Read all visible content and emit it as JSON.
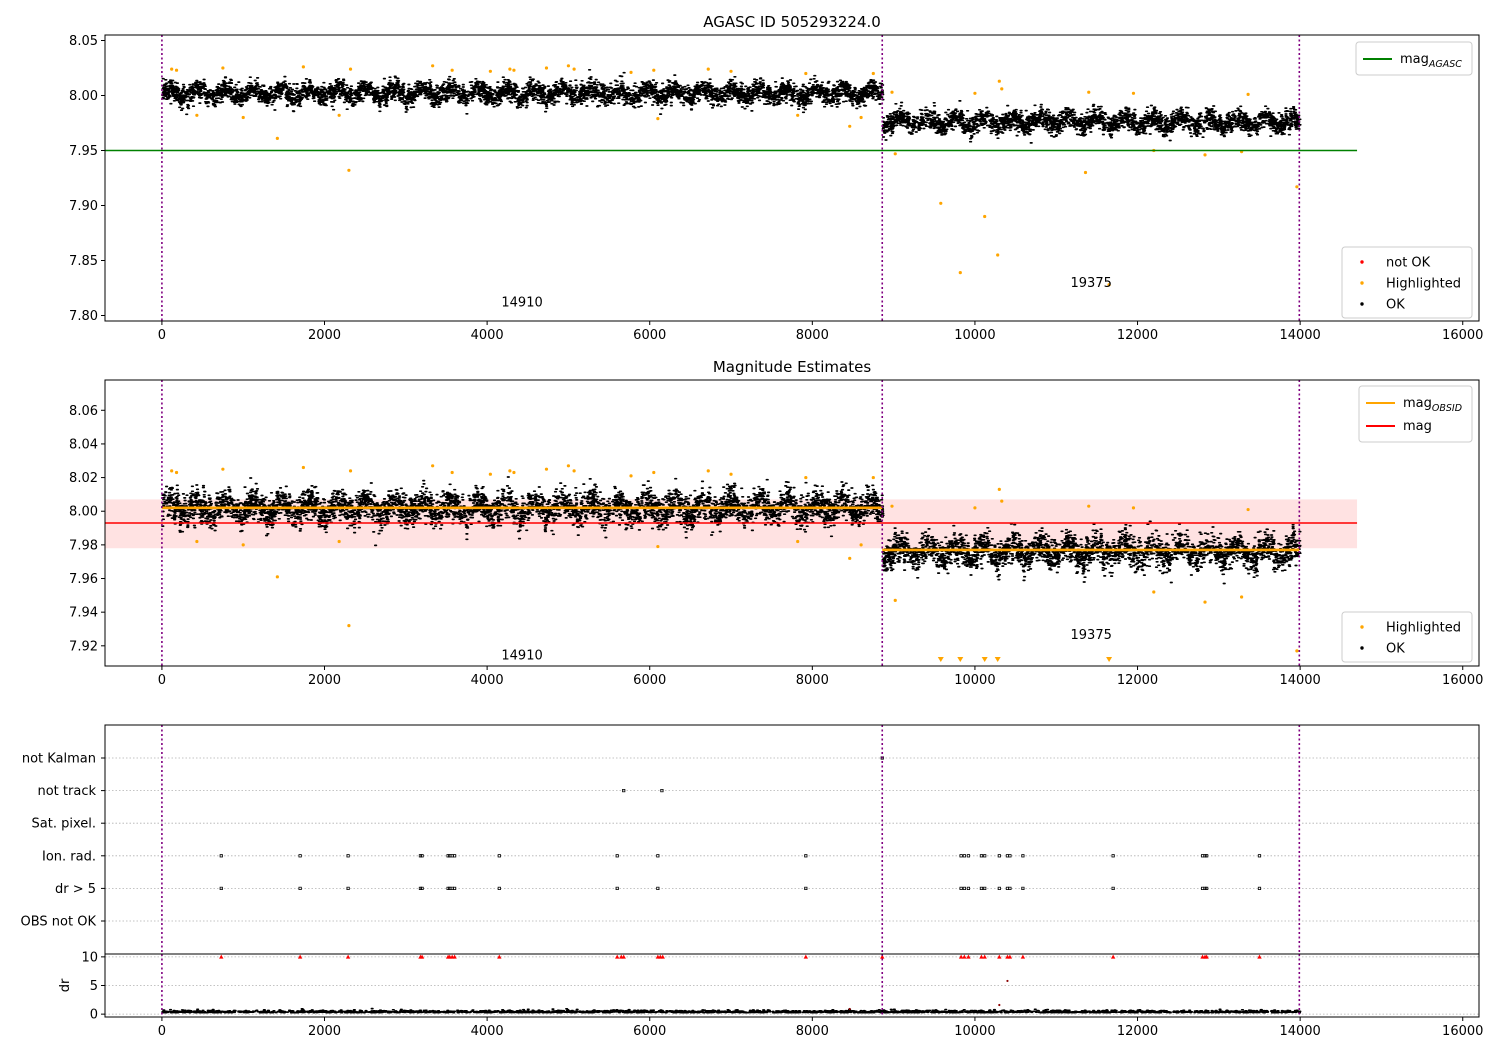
{
  "chart_data": [
    {
      "type": "scatter",
      "title": "AGASC ID 505293224.0",
      "xlim": [
        -700,
        16200
      ],
      "ylim": [
        7.795,
        8.055
      ],
      "xticks": [
        0,
        2000,
        4000,
        6000,
        8000,
        10000,
        12000,
        14000,
        16000
      ],
      "yticks": [
        7.8,
        7.85,
        7.9,
        7.95,
        8.0,
        8.05
      ],
      "ytick_labels": [
        "7.80",
        "7.85",
        "7.90",
        "7.95",
        "8.00",
        "8.05"
      ],
      "vlines": [
        0,
        8860,
        13990
      ],
      "hline": {
        "value": 7.95,
        "x": [
          -700,
          14700
        ],
        "color": "#008000"
      },
      "segments": [
        {
          "x": [
            0,
            8860
          ],
          "center": 8.002,
          "spread": 0.008
        },
        {
          "x": [
            8860,
            13990
          ],
          "center": 7.976,
          "spread": 0.008
        }
      ],
      "annotations": [
        {
          "text": "14910",
          "x": 4430,
          "y": 7.808
        },
        {
          "text": "19375",
          "x": 11430,
          "y": 7.826
        }
      ],
      "highlighted": [
        [
          120,
          8.024
        ],
        [
          180,
          8.023
        ],
        [
          430,
          7.982
        ],
        [
          750,
          8.025
        ],
        [
          1000,
          7.98
        ],
        [
          1420,
          7.961
        ],
        [
          1740,
          8.026
        ],
        [
          2180,
          7.982
        ],
        [
          2300,
          7.932
        ],
        [
          2320,
          8.024
        ],
        [
          3330,
          8.027
        ],
        [
          3570,
          8.023
        ],
        [
          4040,
          8.022
        ],
        [
          4280,
          8.024
        ],
        [
          4330,
          8.023
        ],
        [
          4730,
          8.025
        ],
        [
          5000,
          8.027
        ],
        [
          5070,
          8.024
        ],
        [
          5770,
          8.021
        ],
        [
          6050,
          8.023
        ],
        [
          6100,
          7.979
        ],
        [
          6720,
          8.024
        ],
        [
          7000,
          8.022
        ],
        [
          7820,
          7.982
        ],
        [
          7920,
          8.02
        ],
        [
          8460,
          7.972
        ],
        [
          8600,
          7.98
        ],
        [
          8750,
          8.02
        ],
        [
          8980,
          8.003
        ],
        [
          9020,
          7.947
        ],
        [
          9580,
          7.902
        ],
        [
          9820,
          7.839
        ],
        [
          10120,
          7.89
        ],
        [
          10280,
          7.855
        ],
        [
          10300,
          8.013
        ],
        [
          10330,
          8.006
        ],
        [
          11360,
          7.93
        ],
        [
          11400,
          8.003
        ],
        [
          11950,
          8.002
        ],
        [
          12200,
          7.95
        ],
        [
          12830,
          7.946
        ],
        [
          13280,
          7.949
        ],
        [
          13360,
          8.001
        ],
        [
          13960,
          7.917
        ],
        [
          11650,
          7.828
        ],
        [
          10000,
          8.002
        ]
      ],
      "legend_lines": [
        {
          "label": "mag",
          "sub": "AGASC",
          "color": "#008000"
        }
      ],
      "legend_markers": [
        {
          "label": "not OK",
          "color": "#ff0000"
        },
        {
          "label": "Highlighted",
          "color": "#ffa500"
        },
        {
          "label": "OK",
          "color": "#000000"
        }
      ]
    },
    {
      "type": "scatter",
      "title": "Magnitude Estimates",
      "xlim": [
        -700,
        16200
      ],
      "ylim": [
        7.908,
        8.078
      ],
      "xticks": [
        0,
        2000,
        4000,
        6000,
        8000,
        10000,
        12000,
        14000,
        16000
      ],
      "yticks": [
        7.92,
        7.94,
        7.96,
        7.98,
        8.0,
        8.02,
        8.04,
        8.06
      ],
      "ytick_labels": [
        "7.92",
        "7.94",
        "7.96",
        "7.98",
        "8.00",
        "8.02",
        "8.04",
        "8.06"
      ],
      "vlines": [
        0,
        8860,
        13990
      ],
      "band": {
        "y": [
          7.978,
          8.007
        ],
        "x": [
          -700,
          14700
        ],
        "color": "#ffb6b6"
      },
      "mag_line": {
        "value": 7.993,
        "x": [
          -700,
          14700
        ],
        "color": "#ff0000"
      },
      "obsid_lines": [
        {
          "x": [
            0,
            8860
          ],
          "value": 8.002,
          "color": "#ffa500"
        },
        {
          "x": [
            8860,
            13990
          ],
          "value": 7.977,
          "color": "#ffa500"
        }
      ],
      "segments": [
        {
          "x": [
            0,
            8860
          ],
          "center": 8.002,
          "spread": 0.008
        },
        {
          "x": [
            8860,
            13990
          ],
          "center": 7.976,
          "spread": 0.008
        }
      ],
      "annotations": [
        {
          "text": "14910",
          "x": 4430,
          "y": 7.912
        },
        {
          "text": "19375",
          "x": 11430,
          "y": 7.924
        }
      ],
      "highlighted": [
        [
          120,
          8.024
        ],
        [
          180,
          8.023
        ],
        [
          430,
          7.982
        ],
        [
          750,
          8.025
        ],
        [
          1000,
          7.98
        ],
        [
          1420,
          7.961
        ],
        [
          1740,
          8.026
        ],
        [
          2180,
          7.982
        ],
        [
          2300,
          7.932
        ],
        [
          2320,
          8.024
        ],
        [
          3330,
          8.027
        ],
        [
          3570,
          8.023
        ],
        [
          4040,
          8.022
        ],
        [
          4280,
          8.024
        ],
        [
          4330,
          8.023
        ],
        [
          4730,
          8.025
        ],
        [
          5000,
          8.027
        ],
        [
          5070,
          8.024
        ],
        [
          5770,
          8.021
        ],
        [
          6050,
          8.023
        ],
        [
          6100,
          7.979
        ],
        [
          6720,
          8.024
        ],
        [
          7000,
          8.022
        ],
        [
          7820,
          7.982
        ],
        [
          7920,
          8.02
        ],
        [
          8460,
          7.972
        ],
        [
          8600,
          7.98
        ],
        [
          8750,
          8.02
        ],
        [
          8980,
          8.003
        ],
        [
          9020,
          7.947
        ],
        [
          10300,
          8.013
        ],
        [
          10330,
          8.006
        ],
        [
          11400,
          8.003
        ],
        [
          11950,
          8.002
        ],
        [
          12200,
          7.952
        ],
        [
          12830,
          7.946
        ],
        [
          13280,
          7.949
        ],
        [
          13360,
          8.001
        ],
        [
          13960,
          7.917
        ],
        [
          10000,
          8.002
        ]
      ],
      "below_markers": [
        9580,
        9820,
        10120,
        10280,
        11650
      ],
      "legend_lines": [
        {
          "label": "mag",
          "sub": "OBSID",
          "color": "#ffa500"
        },
        {
          "label": "mag",
          "sub": "",
          "color": "#ff0000"
        }
      ],
      "legend_markers": [
        {
          "label": "Highlighted",
          "color": "#ffa500"
        },
        {
          "label": "OK",
          "color": "#000000"
        }
      ]
    },
    {
      "type": "scatter",
      "title": "",
      "xlim": [
        -700,
        16200
      ],
      "categories": [
        "not Kalman",
        "not track",
        "Sat. pixel.",
        "Ion. rad.",
        "dr > 5",
        "OBS not OK"
      ],
      "vlines": [
        0,
        8860,
        13990
      ],
      "flags": {
        "not Kalman": [
          8860
        ],
        "not track": [
          5680,
          6150
        ],
        "Sat. pixel.": [],
        "Ion. rad.": [
          730,
          1700,
          2290,
          3180,
          3200,
          3520,
          3540,
          3570,
          3600,
          4150,
          5600,
          6100,
          7920,
          9830,
          9870,
          9920,
          10080,
          10120,
          10300,
          10400,
          10430,
          10590,
          11700,
          12800,
          12830,
          12850,
          13500
        ],
        "dr > 5": [
          730,
          1700,
          2290,
          3180,
          3200,
          3520,
          3540,
          3570,
          3600,
          4150,
          5600,
          6100,
          7920,
          9830,
          9870,
          9920,
          10080,
          10120,
          10300,
          10400,
          10430,
          10590,
          11700,
          12800,
          12830,
          12850,
          13500
        ],
        "OBS not OK": []
      }
    },
    {
      "type": "scatter",
      "title": "",
      "ylabel": "dr",
      "xlim": [
        -700,
        16200
      ],
      "ylim": [
        -0.5,
        10.5
      ],
      "xticks": [
        0,
        2000,
        4000,
        6000,
        8000,
        10000,
        12000,
        14000,
        16000
      ],
      "yticks": [
        0,
        5,
        10
      ],
      "vlines": [
        0,
        8860,
        13990
      ],
      "clipped_markers": [
        730,
        1700,
        2290,
        3180,
        3200,
        3520,
        3540,
        3570,
        3600,
        4150,
        5600,
        5650,
        5680,
        6100,
        6130,
        6160,
        7920,
        8860,
        9830,
        9870,
        9920,
        10080,
        10120,
        10300,
        10400,
        10430,
        10590,
        11700,
        12800,
        12830,
        12850,
        13500
      ],
      "outliers": [
        [
          10400,
          5.8
        ],
        [
          10300,
          1.6
        ],
        [
          8460,
          0.9
        ]
      ],
      "baseline": {
        "x": [
          0,
          13990
        ],
        "center": 0.25,
        "spread": 0.2
      }
    }
  ]
}
